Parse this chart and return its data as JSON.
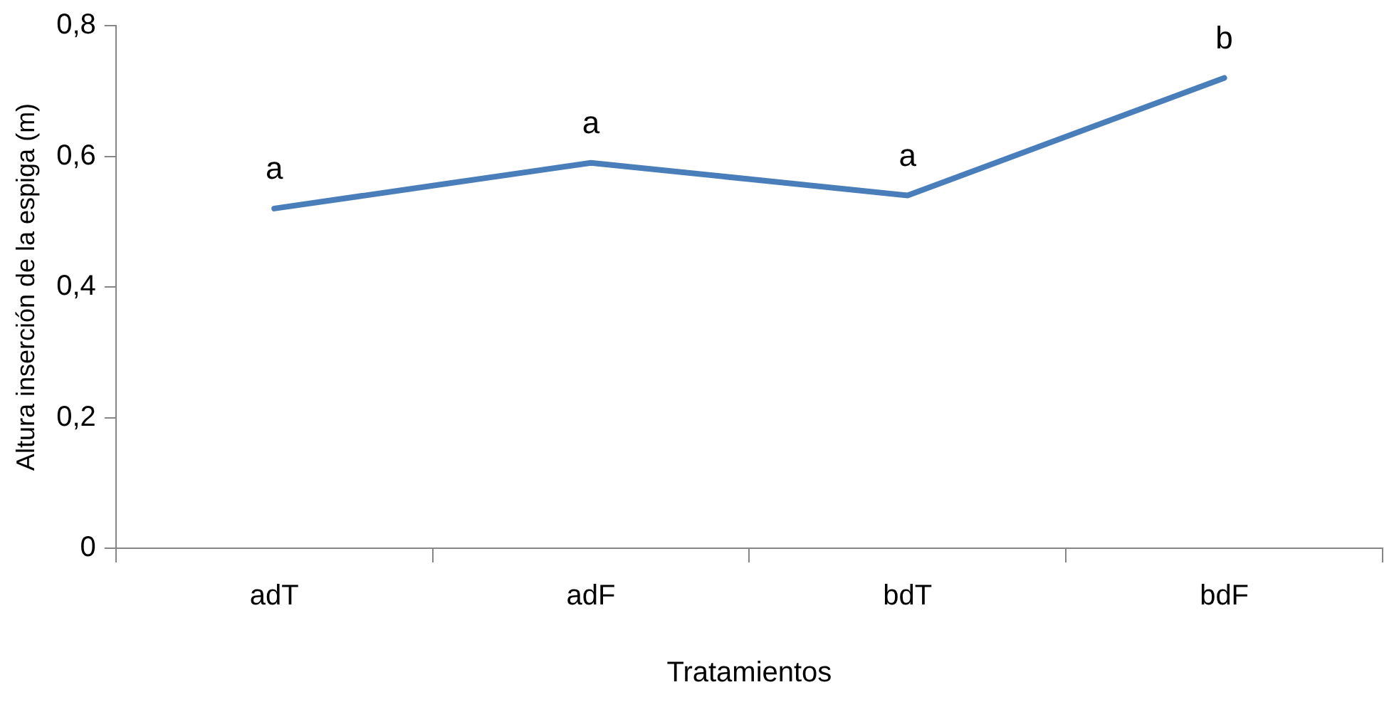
{
  "chart_data": {
    "type": "line",
    "xlabel": "Tratamientos",
    "ylabel": "Altura inserción de la espiga (m)",
    "categories": [
      "adT",
      "adF",
      "bdT",
      "bdF"
    ],
    "series": [
      {
        "color": "#4a7ebb",
        "values": [
          0.52,
          0.59,
          0.54,
          0.72
        ]
      }
    ],
    "ylim": [
      0,
      0.8
    ],
    "yticks": [
      0,
      {
        "value": 0.2,
        "label": "0,2"
      },
      {
        "value": 0.4,
        "label": "0,4"
      },
      {
        "value": 0.6,
        "label": "0,6"
      },
      {
        "value": 0.8,
        "label": "0,8"
      }
    ],
    "annotations": [
      {
        "text": "a",
        "x": "adT",
        "y": 0.52
      },
      {
        "text": "a",
        "x": "adF",
        "y": 0.59
      },
      {
        "text": "a",
        "x": "bdT",
        "y": 0.54
      },
      {
        "text": "b",
        "x": "bdF",
        "y": 0.72
      }
    ],
    "grid": false,
    "legend": false,
    "marker": "none",
    "line_style": "solid"
  }
}
